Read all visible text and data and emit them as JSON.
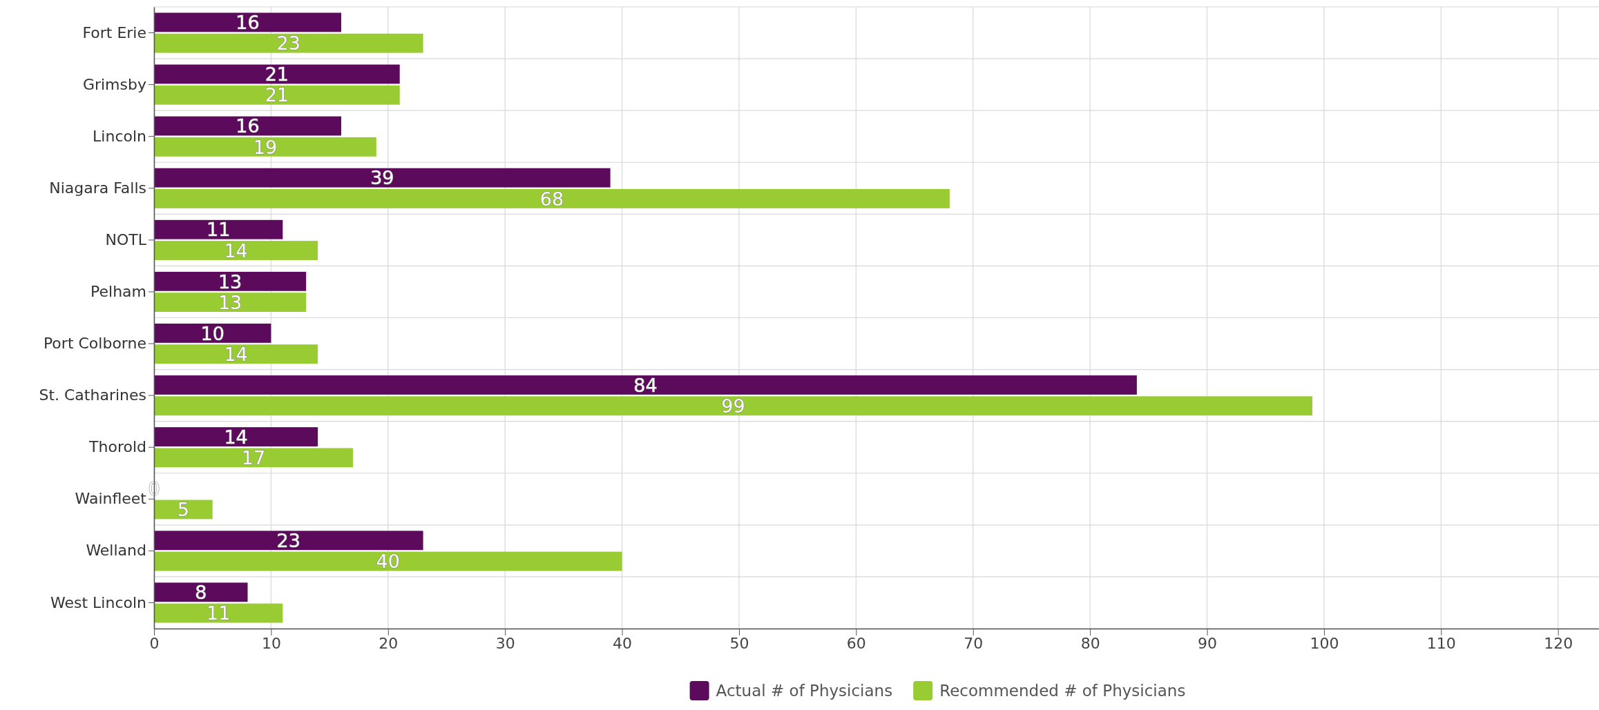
{
  "chart_data": {
    "type": "bar",
    "orientation": "horizontal",
    "categories": [
      "Fort Erie",
      "Grimsby",
      "Lincoln",
      "Niagara Falls",
      "NOTL",
      "Pelham",
      "Port Colborne",
      "St. Catharines",
      "Thorold",
      "Wainfleet",
      "Welland",
      "West Lincoln"
    ],
    "series": [
      {
        "name": "Actual # of Physicians",
        "color": "#5c0a5c",
        "values": [
          16,
          21,
          16,
          39,
          11,
          13,
          10,
          84,
          14,
          0,
          23,
          8
        ]
      },
      {
        "name": "Recommended # of Physicians",
        "color": "#99cc33",
        "values": [
          23,
          21,
          19,
          68,
          14,
          13,
          14,
          99,
          17,
          5,
          40,
          11
        ]
      }
    ],
    "xlim": [
      0,
      123.5
    ],
    "xticks": [
      0,
      10,
      20,
      30,
      40,
      50,
      60,
      70,
      80,
      90,
      100,
      110,
      120
    ],
    "grid": true,
    "legend": "bottom",
    "data_labels": true
  }
}
